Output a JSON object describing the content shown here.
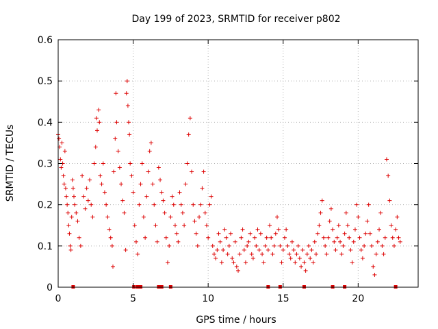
{
  "chart_data": {
    "type": "scatter",
    "title": "Day 199 of 2023, SRMTID for receiver p802",
    "xlabel": "GPS time / hours",
    "ylabel": "SRMTID / TECUs",
    "xlim": [
      0,
      24
    ],
    "ylim": [
      0,
      0.6
    ],
    "x_ticks": [
      0,
      5,
      10,
      15,
      20
    ],
    "x_tick_labels": [
      "0",
      "5",
      "10",
      "15",
      "20"
    ],
    "y_ticks": [
      0,
      0.1,
      0.2,
      0.3,
      0.4,
      0.5,
      0.6
    ],
    "y_tick_labels": [
      "0",
      "0.1",
      "0.2",
      "0.3",
      "0.4",
      "0.5",
      "0.6"
    ],
    "grid": true,
    "marker": "plus",
    "color": "#dd0000",
    "series": [
      {
        "name": "SRMTID",
        "points": [
          [
            0.0,
            0.37
          ],
          [
            0.05,
            0.36
          ],
          [
            0.1,
            0.34
          ],
          [
            0.15,
            0.31
          ],
          [
            0.2,
            0.29
          ],
          [
            0.25,
            0.35
          ],
          [
            0.3,
            0.3
          ],
          [
            0.35,
            0.27
          ],
          [
            0.4,
            0.25
          ],
          [
            0.45,
            0.33
          ],
          [
            0.5,
            0.24
          ],
          [
            0.55,
            0.22
          ],
          [
            0.6,
            0.2
          ],
          [
            0.65,
            0.18
          ],
          [
            0.7,
            0.15
          ],
          [
            0.75,
            0.13
          ],
          [
            0.8,
            0.1
          ],
          [
            0.85,
            0.09
          ],
          [
            0.9,
            0.17
          ],
          [
            0.95,
            0.26
          ],
          [
            1.0,
            0.24
          ],
          [
            1.05,
            0.22
          ],
          [
            1.1,
            0.2
          ],
          [
            1.2,
            0.18
          ],
          [
            1.3,
            0.16
          ],
          [
            1.4,
            0.12
          ],
          [
            1.5,
            0.1
          ],
          [
            1.6,
            0.27
          ],
          [
            1.7,
            0.22
          ],
          [
            1.8,
            0.19
          ],
          [
            1.9,
            0.24
          ],
          [
            2.0,
            0.21
          ],
          [
            2.1,
            0.26
          ],
          [
            2.2,
            0.2
          ],
          [
            2.3,
            0.17
          ],
          [
            2.4,
            0.3
          ],
          [
            2.5,
            0.34
          ],
          [
            2.55,
            0.41
          ],
          [
            2.6,
            0.38
          ],
          [
            2.7,
            0.43
          ],
          [
            2.75,
            0.4
          ],
          [
            2.8,
            0.27
          ],
          [
            2.9,
            0.25
          ],
          [
            3.0,
            0.3
          ],
          [
            3.1,
            0.23
          ],
          [
            3.2,
            0.2
          ],
          [
            3.3,
            0.17
          ],
          [
            3.4,
            0.14
          ],
          [
            3.5,
            0.12
          ],
          [
            3.6,
            0.1
          ],
          [
            3.65,
            0.05
          ],
          [
            3.7,
            0.28
          ],
          [
            3.8,
            0.36
          ],
          [
            3.85,
            0.47
          ],
          [
            3.9,
            0.4
          ],
          [
            4.0,
            0.33
          ],
          [
            4.1,
            0.29
          ],
          [
            4.2,
            0.25
          ],
          [
            4.3,
            0.21
          ],
          [
            4.4,
            0.18
          ],
          [
            4.5,
            0.09
          ],
          [
            4.55,
            0.47
          ],
          [
            4.6,
            0.5
          ],
          [
            4.65,
            0.44
          ],
          [
            4.7,
            0.4
          ],
          [
            4.75,
            0.37
          ],
          [
            4.8,
            0.3
          ],
          [
            4.9,
            0.27
          ],
          [
            5.0,
            0.23
          ],
          [
            5.1,
            0.15
          ],
          [
            5.2,
            0.11
          ],
          [
            5.3,
            0.08
          ],
          [
            5.4,
            0.2
          ],
          [
            5.5,
            0.25
          ],
          [
            5.6,
            0.3
          ],
          [
            5.7,
            0.17
          ],
          [
            5.8,
            0.12
          ],
          [
            5.9,
            0.22
          ],
          [
            6.0,
            0.28
          ],
          [
            6.1,
            0.33
          ],
          [
            6.2,
            0.35
          ],
          [
            6.3,
            0.25
          ],
          [
            6.4,
            0.2
          ],
          [
            6.5,
            0.15
          ],
          [
            6.6,
            0.11
          ],
          [
            6.7,
            0.29
          ],
          [
            6.8,
            0.26
          ],
          [
            6.9,
            0.23
          ],
          [
            7.0,
            0.21
          ],
          [
            7.1,
            0.18
          ],
          [
            7.2,
            0.12
          ],
          [
            7.3,
            0.06
          ],
          [
            7.4,
            0.1
          ],
          [
            7.5,
            0.17
          ],
          [
            7.6,
            0.22
          ],
          [
            7.7,
            0.2
          ],
          [
            7.8,
            0.15
          ],
          [
            7.9,
            0.13
          ],
          [
            8.0,
            0.11
          ],
          [
            8.1,
            0.23
          ],
          [
            8.2,
            0.2
          ],
          [
            8.3,
            0.18
          ],
          [
            8.4,
            0.15
          ],
          [
            8.5,
            0.25
          ],
          [
            8.6,
            0.3
          ],
          [
            8.7,
            0.37
          ],
          [
            8.8,
            0.41
          ],
          [
            8.9,
            0.28
          ],
          [
            9.0,
            0.2
          ],
          [
            9.1,
            0.16
          ],
          [
            9.2,
            0.13
          ],
          [
            9.3,
            0.1
          ],
          [
            9.4,
            0.17
          ],
          [
            9.5,
            0.2
          ],
          [
            9.6,
            0.24
          ],
          [
            9.7,
            0.28
          ],
          [
            9.8,
            0.18
          ],
          [
            9.9,
            0.15
          ],
          [
            10.0,
            0.12
          ],
          [
            10.1,
            0.2
          ],
          [
            10.2,
            0.22
          ],
          [
            10.3,
            0.1
          ],
          [
            10.4,
            0.08
          ],
          [
            10.5,
            0.07
          ],
          [
            10.6,
            0.09
          ],
          [
            10.7,
            0.13
          ],
          [
            10.8,
            0.11
          ],
          [
            10.9,
            0.06
          ],
          [
            11.0,
            0.09
          ],
          [
            11.1,
            0.14
          ],
          [
            11.2,
            0.12
          ],
          [
            11.3,
            0.08
          ],
          [
            11.4,
            0.1
          ],
          [
            11.5,
            0.13
          ],
          [
            11.6,
            0.07
          ],
          [
            11.7,
            0.06
          ],
          [
            11.8,
            0.11
          ],
          [
            11.9,
            0.05
          ],
          [
            12.0,
            0.04
          ],
          [
            12.1,
            0.08
          ],
          [
            12.2,
            0.12
          ],
          [
            12.3,
            0.14
          ],
          [
            12.4,
            0.09
          ],
          [
            12.5,
            0.06
          ],
          [
            12.6,
            0.1
          ],
          [
            12.7,
            0.11
          ],
          [
            12.8,
            0.13
          ],
          [
            12.9,
            0.08
          ],
          [
            13.0,
            0.07
          ],
          [
            13.1,
            0.12
          ],
          [
            13.2,
            0.1
          ],
          [
            13.3,
            0.14
          ],
          [
            13.4,
            0.09
          ],
          [
            13.5,
            0.13
          ],
          [
            13.6,
            0.08
          ],
          [
            13.7,
            0.06
          ],
          [
            13.8,
            0.1
          ],
          [
            13.9,
            0.12
          ],
          [
            14.0,
            0.09
          ],
          [
            14.1,
            0.15
          ],
          [
            14.2,
            0.12
          ],
          [
            14.3,
            0.08
          ],
          [
            14.4,
            0.1
          ],
          [
            14.5,
            0.13
          ],
          [
            14.6,
            0.17
          ],
          [
            14.7,
            0.14
          ],
          [
            14.8,
            0.1
          ],
          [
            14.9,
            0.06
          ],
          [
            15.0,
            0.09
          ],
          [
            15.1,
            0.12
          ],
          [
            15.2,
            0.14
          ],
          [
            15.3,
            0.1
          ],
          [
            15.4,
            0.08
          ],
          [
            15.5,
            0.07
          ],
          [
            15.6,
            0.11
          ],
          [
            15.7,
            0.09
          ],
          [
            15.8,
            0.06
          ],
          [
            15.9,
            0.08
          ],
          [
            16.0,
            0.1
          ],
          [
            16.1,
            0.07
          ],
          [
            16.2,
            0.05
          ],
          [
            16.3,
            0.09
          ],
          [
            16.4,
            0.06
          ],
          [
            16.5,
            0.04
          ],
          [
            16.6,
            0.08
          ],
          [
            16.7,
            0.1
          ],
          [
            16.8,
            0.07
          ],
          [
            16.9,
            0.09
          ],
          [
            17.0,
            0.06
          ],
          [
            17.1,
            0.11
          ],
          [
            17.2,
            0.08
          ],
          [
            17.3,
            0.13
          ],
          [
            17.4,
            0.15
          ],
          [
            17.5,
            0.18
          ],
          [
            17.6,
            0.21
          ],
          [
            17.7,
            0.12
          ],
          [
            17.8,
            0.1
          ],
          [
            17.9,
            0.08
          ],
          [
            18.0,
            0.12
          ],
          [
            18.1,
            0.16
          ],
          [
            18.2,
            0.19
          ],
          [
            18.3,
            0.14
          ],
          [
            18.4,
            0.11
          ],
          [
            18.5,
            0.09
          ],
          [
            18.6,
            0.12
          ],
          [
            18.7,
            0.15
          ],
          [
            18.8,
            0.11
          ],
          [
            18.9,
            0.08
          ],
          [
            19.0,
            0.1
          ],
          [
            19.1,
            0.13
          ],
          [
            19.2,
            0.18
          ],
          [
            19.3,
            0.15
          ],
          [
            19.4,
            0.12
          ],
          [
            19.5,
            0.09
          ],
          [
            19.6,
            0.06
          ],
          [
            19.7,
            0.11
          ],
          [
            19.8,
            0.14
          ],
          [
            19.9,
            0.2
          ],
          [
            20.0,
            0.17
          ],
          [
            20.1,
            0.12
          ],
          [
            20.2,
            0.09
          ],
          [
            20.3,
            0.07
          ],
          [
            20.4,
            0.1
          ],
          [
            20.5,
            0.13
          ],
          [
            20.6,
            0.16
          ],
          [
            20.7,
            0.2
          ],
          [
            20.8,
            0.13
          ],
          [
            20.9,
            0.1
          ],
          [
            21.0,
            0.05
          ],
          [
            21.1,
            0.03
          ],
          [
            21.2,
            0.08
          ],
          [
            21.3,
            0.11
          ],
          [
            21.4,
            0.14
          ],
          [
            21.5,
            0.18
          ],
          [
            21.6,
            0.1
          ],
          [
            21.7,
            0.08
          ],
          [
            21.8,
            0.12
          ],
          [
            21.9,
            0.31
          ],
          [
            22.0,
            0.27
          ],
          [
            22.1,
            0.21
          ],
          [
            22.2,
            0.15
          ],
          [
            22.3,
            0.12
          ],
          [
            22.4,
            0.1
          ],
          [
            22.5,
            0.14
          ],
          [
            22.6,
            0.17
          ],
          [
            22.7,
            0.12
          ],
          [
            22.8,
            0.11
          ]
        ]
      }
    ],
    "zero_markers": [
      1.0,
      5.05,
      5.3,
      5.5,
      6.7,
      6.9,
      7.5,
      14.0,
      14.8,
      16.4,
      18.3,
      19.1,
      22.5
    ]
  }
}
